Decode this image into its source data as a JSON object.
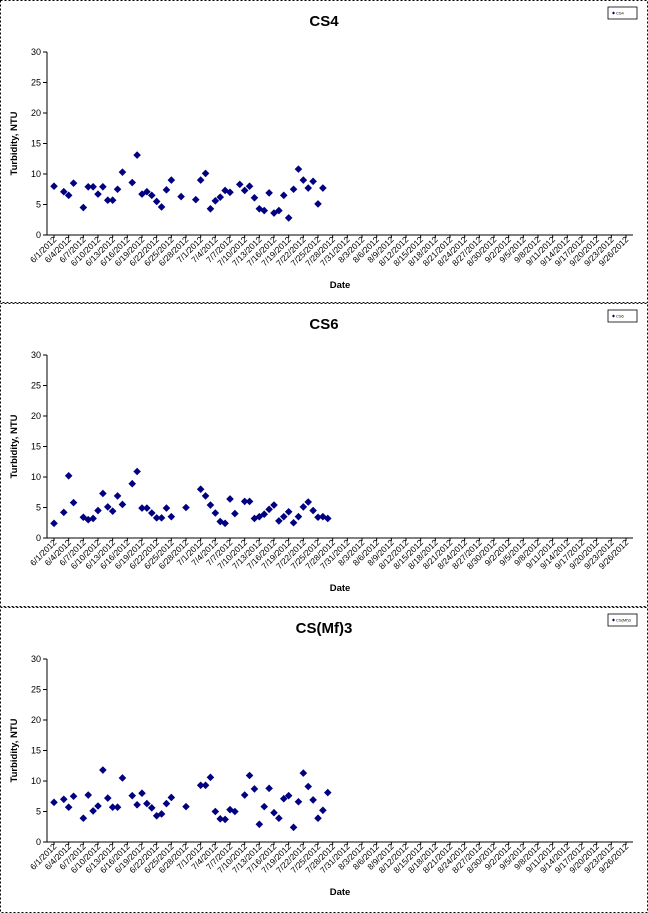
{
  "chart_data": [
    {
      "type": "scatter",
      "title": "CS4",
      "xlabel": "Date",
      "ylabel": "Turbidity, NTU",
      "ylim": [
        0,
        30
      ],
      "yticks": [
        0,
        5,
        10,
        15,
        20,
        25,
        30
      ],
      "grid": false,
      "legend": {
        "placement": "top-right",
        "entries": [
          "CS4"
        ]
      },
      "x_tick_labels": [
        "6/1/2012",
        "6/4/2012",
        "6/7/2012",
        "6/10/2012",
        "6/13/2012",
        "6/16/2012",
        "6/19/2012",
        "6/22/2012",
        "6/25/2012",
        "6/28/2012",
        "7/1/2012",
        "7/4/2012",
        "7/7/2012",
        "7/10/2012",
        "7/13/2012",
        "7/16/2012",
        "7/19/2012",
        "7/22/2012",
        "7/25/2012",
        "7/28/2012",
        "7/31/2012",
        "8/3/2012",
        "8/6/2012",
        "8/9/2012",
        "8/12/2012",
        "8/15/2012",
        "8/18/2012",
        "8/21/2012",
        "8/24/2012",
        "8/27/2012",
        "8/30/2012",
        "9/2/2012",
        "9/5/2012",
        "9/8/2012",
        "9/11/2012",
        "9/14/2012",
        "9/17/2012",
        "9/20/2012",
        "9/23/2012",
        "9/26/2012"
      ],
      "series": [
        {
          "name": "CS4",
          "color": "#000080",
          "points": [
            [
              "6/1/2012",
              8.0
            ],
            [
              "6/3/2012",
              7.1
            ],
            [
              "6/4/2012",
              6.5
            ],
            [
              "6/5/2012",
              8.5
            ],
            [
              "6/7/2012",
              4.5
            ],
            [
              "6/8/2012",
              7.9
            ],
            [
              "6/9/2012",
              7.9
            ],
            [
              "6/10/2012",
              6.7
            ],
            [
              "6/11/2012",
              7.9
            ],
            [
              "6/12/2012",
              5.7
            ],
            [
              "6/13/2012",
              5.7
            ],
            [
              "6/14/2012",
              7.5
            ],
            [
              "6/15/2012",
              10.3
            ],
            [
              "6/17/2012",
              8.6
            ],
            [
              "6/18/2012",
              13.1
            ],
            [
              "6/19/2012",
              6.7
            ],
            [
              "6/20/2012",
              7.1
            ],
            [
              "6/21/2012",
              6.5
            ],
            [
              "6/22/2012",
              5.5
            ],
            [
              "6/23/2012",
              4.6
            ],
            [
              "6/24/2012",
              7.4
            ],
            [
              "6/25/2012",
              9.0
            ],
            [
              "6/27/2012",
              6.3
            ],
            [
              "6/30/2012",
              5.8
            ],
            [
              "7/1/2012",
              9.0
            ],
            [
              "7/2/2012",
              10.1
            ],
            [
              "7/3/2012",
              4.3
            ],
            [
              "7/4/2012",
              5.6
            ],
            [
              "7/5/2012",
              6.2
            ],
            [
              "7/6/2012",
              7.3
            ],
            [
              "7/7/2012",
              7.0
            ],
            [
              "7/9/2012",
              8.3
            ],
            [
              "7/10/2012",
              7.3
            ],
            [
              "7/11/2012",
              8.0
            ],
            [
              "7/12/2012",
              6.1
            ],
            [
              "7/13/2012",
              4.3
            ],
            [
              "7/14/2012",
              4.0
            ],
            [
              "7/15/2012",
              6.9
            ],
            [
              "7/16/2012",
              3.6
            ],
            [
              "7/17/2012",
              4.0
            ],
            [
              "7/18/2012",
              6.5
            ],
            [
              "7/19/2012",
              2.8
            ],
            [
              "7/20/2012",
              7.5
            ],
            [
              "7/21/2012",
              10.8
            ],
            [
              "7/22/2012",
              9.0
            ],
            [
              "7/23/2012",
              7.7
            ],
            [
              "7/24/2012",
              8.8
            ],
            [
              "7/25/2012",
              5.1
            ],
            [
              "7/26/2012",
              7.7
            ]
          ]
        }
      ]
    },
    {
      "type": "scatter",
      "title": "CS6",
      "xlabel": "Date",
      "ylabel": "Turbidity, NTU",
      "ylim": [
        0,
        30
      ],
      "yticks": [
        0,
        5,
        10,
        15,
        20,
        25,
        30
      ],
      "grid": false,
      "legend": {
        "placement": "top-right",
        "entries": [
          "CS6"
        ]
      },
      "x_tick_labels": [
        "6/1/2012",
        "6/4/2012",
        "6/7/2012",
        "6/10/2012",
        "6/13/2012",
        "6/16/2012",
        "6/19/2012",
        "6/22/2012",
        "6/25/2012",
        "6/28/2012",
        "7/1/2012",
        "7/4/2012",
        "7/7/2012",
        "7/10/2012",
        "7/13/2012",
        "7/16/2012",
        "7/19/2012",
        "7/22/2012",
        "7/25/2012",
        "7/28/2012",
        "7/31/2012",
        "8/3/2012",
        "8/6/2012",
        "8/9/2012",
        "8/12/2012",
        "8/15/2012",
        "8/18/2012",
        "8/21/2012",
        "8/24/2012",
        "8/27/2012",
        "8/30/2012",
        "9/2/2012",
        "9/5/2012",
        "9/8/2012",
        "9/11/2012",
        "9/14/2012",
        "9/17/2012",
        "9/20/2012",
        "9/23/2012",
        "9/26/2012"
      ],
      "series": [
        {
          "name": "CS6",
          "color": "#000080",
          "points": [
            [
              "6/1/2012",
              2.4
            ],
            [
              "6/3/2012",
              4.2
            ],
            [
              "6/4/2012",
              10.2
            ],
            [
              "6/5/2012",
              5.8
            ],
            [
              "6/7/2012",
              3.4
            ],
            [
              "6/8/2012",
              3.0
            ],
            [
              "6/9/2012",
              3.2
            ],
            [
              "6/10/2012",
              4.5
            ],
            [
              "6/11/2012",
              7.3
            ],
            [
              "6/12/2012",
              5.1
            ],
            [
              "6/13/2012",
              4.4
            ],
            [
              "6/14/2012",
              6.9
            ],
            [
              "6/15/2012",
              5.5
            ],
            [
              "6/17/2012",
              8.9
            ],
            [
              "6/18/2012",
              10.9
            ],
            [
              "6/19/2012",
              4.9
            ],
            [
              "6/20/2012",
              4.9
            ],
            [
              "6/21/2012",
              4.1
            ],
            [
              "6/22/2012",
              3.3
            ],
            [
              "6/23/2012",
              3.3
            ],
            [
              "6/24/2012",
              4.9
            ],
            [
              "6/25/2012",
              3.5
            ],
            [
              "6/28/2012",
              5.0
            ],
            [
              "7/1/2012",
              8.0
            ],
            [
              "7/2/2012",
              6.9
            ],
            [
              "7/3/2012",
              5.4
            ],
            [
              "7/4/2012",
              4.1
            ],
            [
              "7/5/2012",
              2.7
            ],
            [
              "7/6/2012",
              2.4
            ],
            [
              "7/7/2012",
              6.4
            ],
            [
              "7/8/2012",
              4.0
            ],
            [
              "7/10/2012",
              6.0
            ],
            [
              "7/11/2012",
              6.0
            ],
            [
              "7/12/2012",
              3.2
            ],
            [
              "7/13/2012",
              3.5
            ],
            [
              "7/14/2012",
              3.9
            ],
            [
              "7/15/2012",
              4.7
            ],
            [
              "7/16/2012",
              5.4
            ],
            [
              "7/17/2012",
              2.8
            ],
            [
              "7/18/2012",
              3.5
            ],
            [
              "7/19/2012",
              4.3
            ],
            [
              "7/20/2012",
              2.5
            ],
            [
              "7/21/2012",
              3.5
            ],
            [
              "7/22/2012",
              5.1
            ],
            [
              "7/23/2012",
              5.9
            ],
            [
              "7/24/2012",
              4.5
            ],
            [
              "7/25/2012",
              3.4
            ],
            [
              "7/26/2012",
              3.5
            ],
            [
              "7/27/2012",
              3.2
            ]
          ]
        }
      ]
    },
    {
      "type": "scatter",
      "title": "CS(Mf)3",
      "xlabel": "Date",
      "ylabel": "Turbidity, NTU",
      "ylim": [
        0,
        30
      ],
      "yticks": [
        0,
        5,
        10,
        15,
        20,
        25,
        30
      ],
      "grid": false,
      "legend": {
        "placement": "top-right",
        "entries": [
          "CS(Mf)3"
        ]
      },
      "x_tick_labels": [
        "6/1/2012",
        "6/4/2012",
        "6/7/2012",
        "6/10/2012",
        "6/13/2012",
        "6/16/2012",
        "6/19/2012",
        "6/22/2012",
        "6/25/2012",
        "6/28/2012",
        "7/1/2012",
        "7/4/2012",
        "7/7/2012",
        "7/10/2012",
        "7/13/2012",
        "7/16/2012",
        "7/19/2012",
        "7/22/2012",
        "7/25/2012",
        "7/28/2012",
        "7/31/2012",
        "8/3/2012",
        "8/6/2012",
        "8/9/2012",
        "8/12/2012",
        "8/15/2012",
        "8/18/2012",
        "8/21/2012",
        "8/24/2012",
        "8/27/2012",
        "8/30/2012",
        "9/2/2012",
        "9/5/2012",
        "9/8/2012",
        "9/11/2012",
        "9/14/2012",
        "9/17/2012",
        "9/20/2012",
        "9/23/2012",
        "9/26/2012"
      ],
      "series": [
        {
          "name": "CS(Mf)3",
          "color": "#000080",
          "points": [
            [
              "6/1/2012",
              6.5
            ],
            [
              "6/3/2012",
              7.0
            ],
            [
              "6/4/2012",
              5.7
            ],
            [
              "6/5/2012",
              7.5
            ],
            [
              "6/7/2012",
              3.9
            ],
            [
              "6/8/2012",
              7.7
            ],
            [
              "6/9/2012",
              5.1
            ],
            [
              "6/10/2012",
              5.9
            ],
            [
              "6/11/2012",
              11.8
            ],
            [
              "6/12/2012",
              7.2
            ],
            [
              "6/13/2012",
              5.7
            ],
            [
              "6/14/2012",
              5.7
            ],
            [
              "6/15/2012",
              10.5
            ],
            [
              "6/17/2012",
              7.6
            ],
            [
              "6/18/2012",
              6.1
            ],
            [
              "6/19/2012",
              8.0
            ],
            [
              "6/20/2012",
              6.3
            ],
            [
              "6/21/2012",
              5.6
            ],
            [
              "6/22/2012",
              4.3
            ],
            [
              "6/23/2012",
              4.6
            ],
            [
              "6/24/2012",
              6.3
            ],
            [
              "6/25/2012",
              7.3
            ],
            [
              "6/28/2012",
              5.8
            ],
            [
              "7/1/2012",
              9.3
            ],
            [
              "7/2/2012",
              9.3
            ],
            [
              "7/3/2012",
              10.6
            ],
            [
              "7/4/2012",
              5.0
            ],
            [
              "7/5/2012",
              3.8
            ],
            [
              "7/6/2012",
              3.7
            ],
            [
              "7/7/2012",
              5.3
            ],
            [
              "7/8/2012",
              5.0
            ],
            [
              "7/10/2012",
              7.7
            ],
            [
              "7/11/2012",
              10.9
            ],
            [
              "7/12/2012",
              8.7
            ],
            [
              "7/13/2012",
              2.9
            ],
            [
              "7/14/2012",
              5.8
            ],
            [
              "7/15/2012",
              8.8
            ],
            [
              "7/16/2012",
              4.8
            ],
            [
              "7/17/2012",
              3.9
            ],
            [
              "7/18/2012",
              7.1
            ],
            [
              "7/19/2012",
              7.6
            ],
            [
              "7/20/2012",
              2.4
            ],
            [
              "7/21/2012",
              6.6
            ],
            [
              "7/22/2012",
              11.3
            ],
            [
              "7/23/2012",
              9.1
            ],
            [
              "7/24/2012",
              6.9
            ],
            [
              "7/25/2012",
              3.9
            ],
            [
              "7/26/2012",
              5.2
            ],
            [
              "7/27/2012",
              8.1
            ]
          ]
        }
      ]
    }
  ]
}
